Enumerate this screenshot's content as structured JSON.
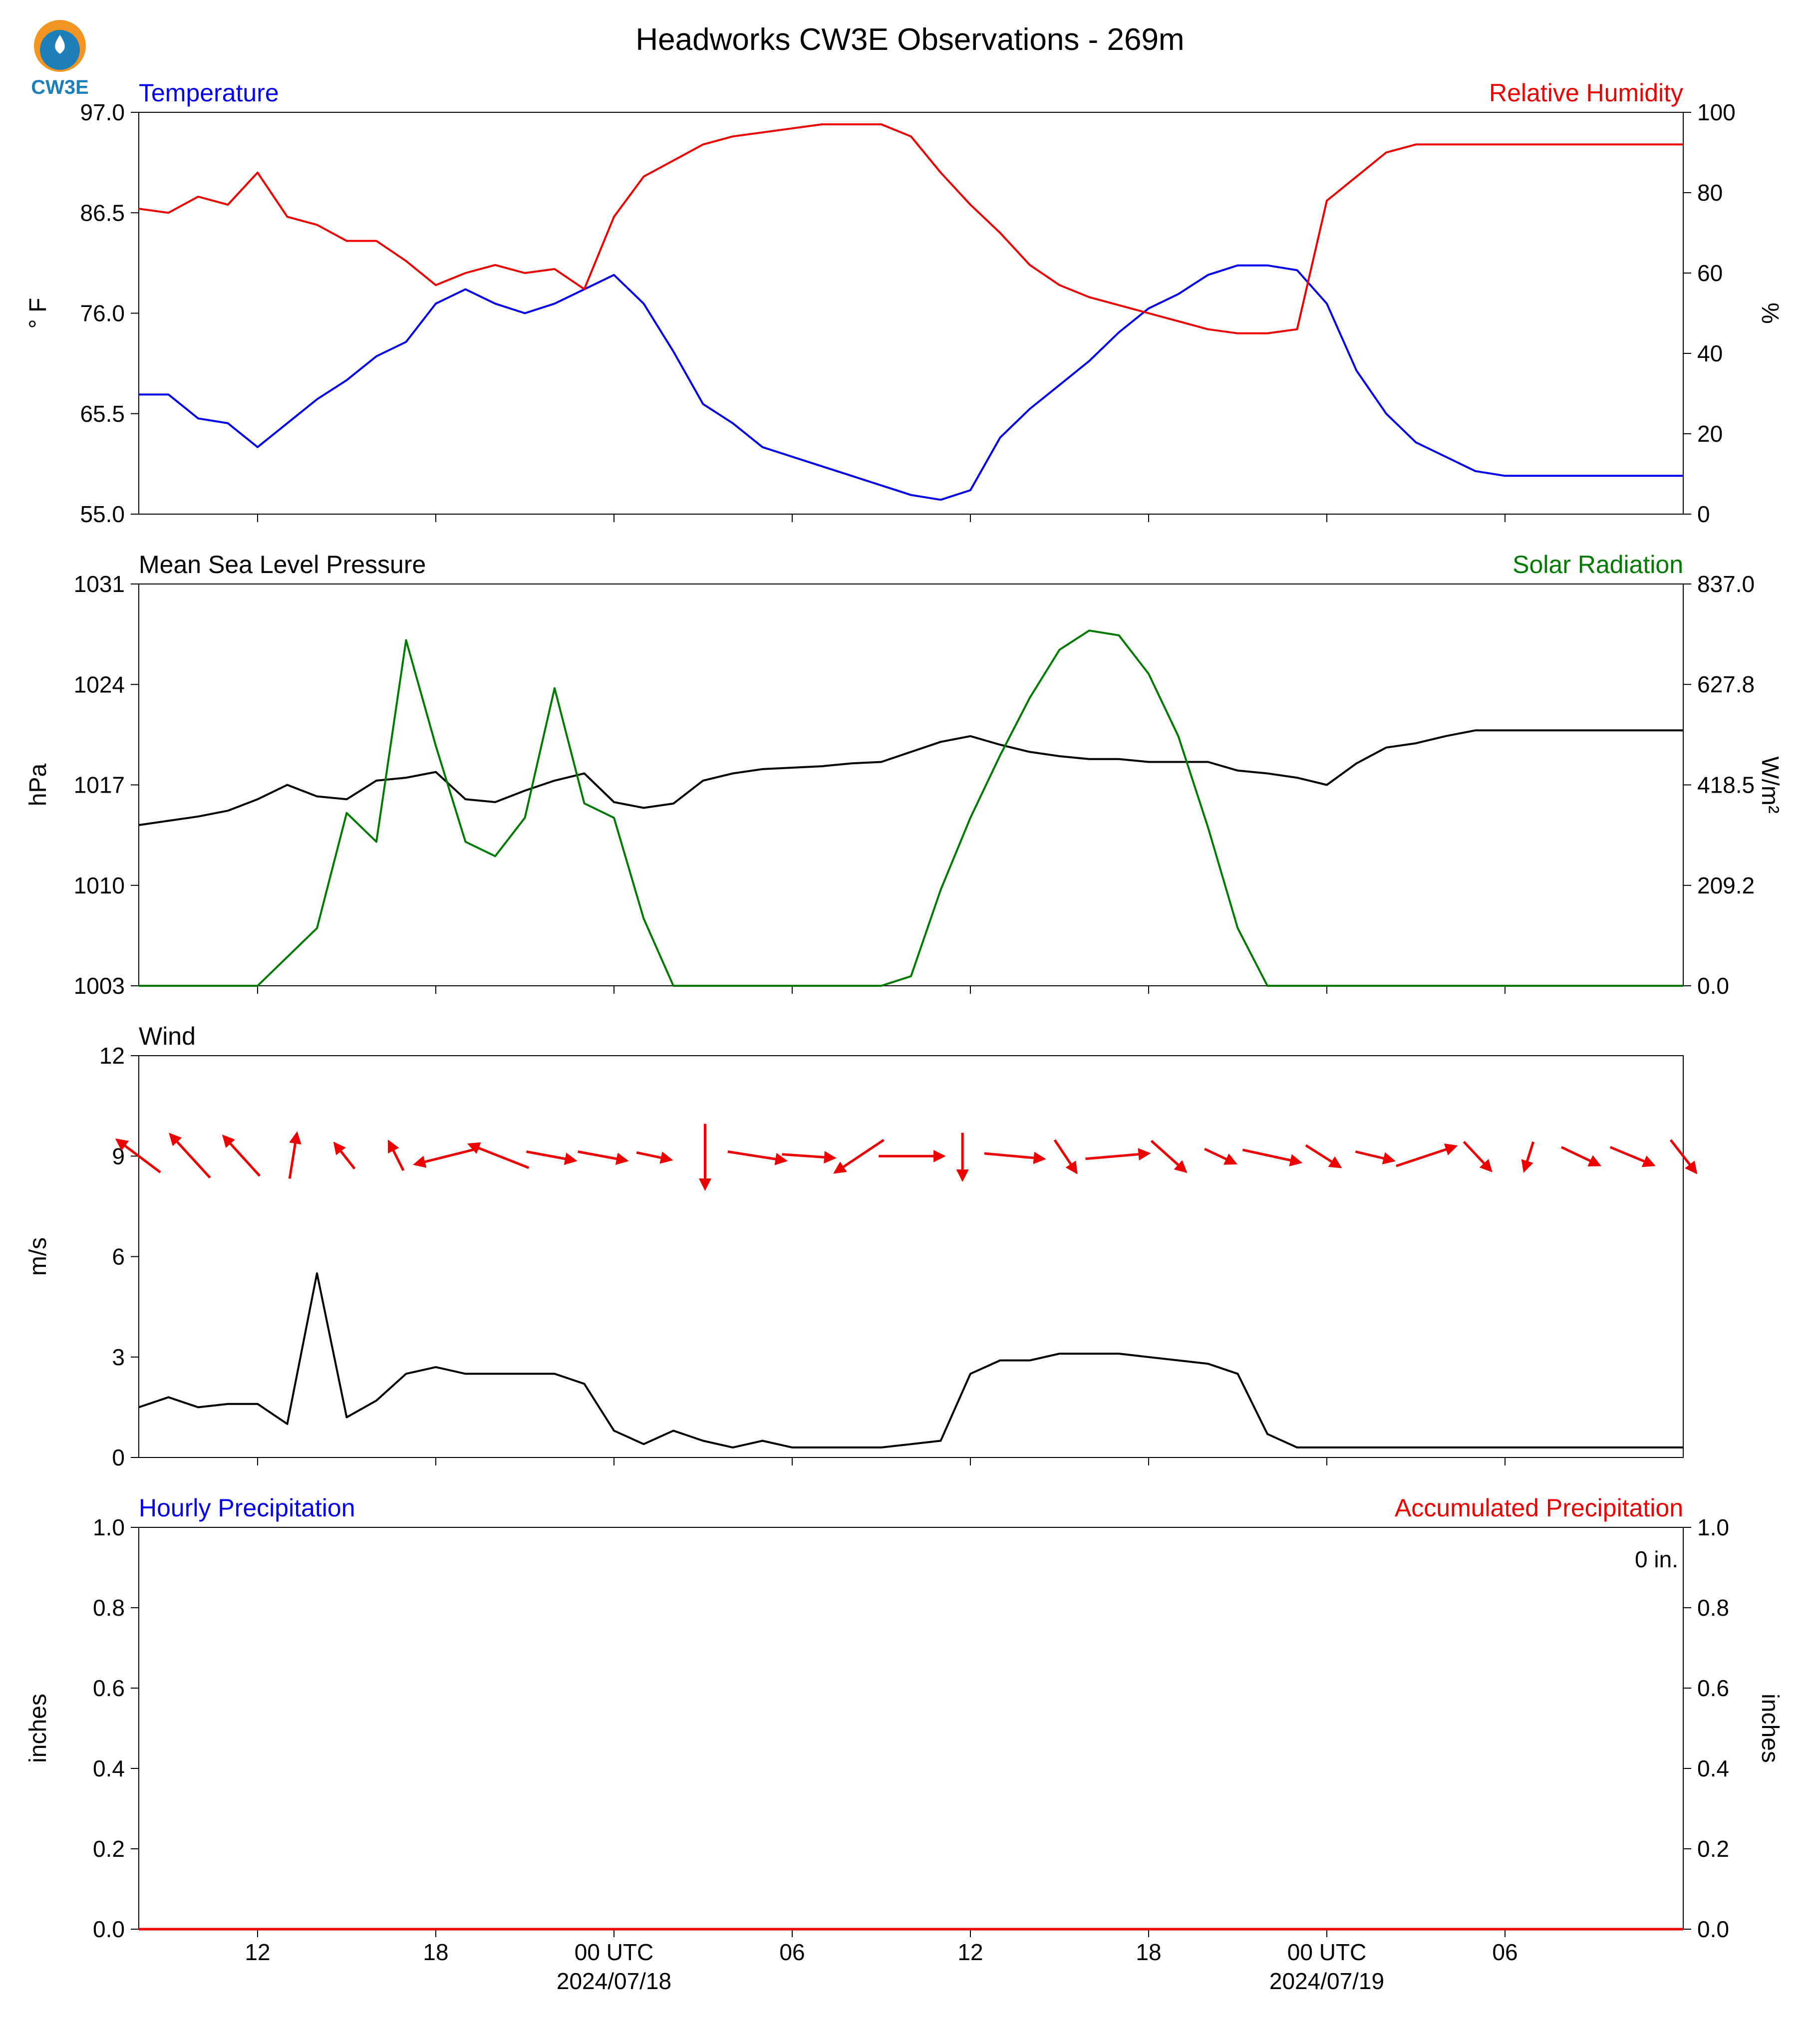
{
  "title": "Headworks CW3E Observations - 269m",
  "logo_text": "CW3E",
  "colors": {
    "temp": "#0000ee",
    "rh": "#ee0000",
    "pressure": "#000000",
    "solar": "#007a00",
    "wind": "#000000",
    "arrows": "#ee0000",
    "precip": "#ee0000"
  },
  "chart_data": [
    {
      "type": "line",
      "title_left": "Temperature",
      "title_right": "Relative Humidity",
      "ylabel_left": "° F",
      "ylabel_right": "%",
      "ylim_left": [
        55.0,
        97.0
      ],
      "yticks_left": [
        "55.0",
        "65.5",
        "76.0",
        "86.5",
        "97.0"
      ],
      "ylim_right": [
        0,
        100
      ],
      "yticks_right": [
        "0",
        "20",
        "40",
        "60",
        "80",
        "100"
      ],
      "x_hours": [
        -4,
        48
      ],
      "series": [
        {
          "name": "Temperature",
          "axis": "left",
          "x": [
            -4,
            -3,
            -2,
            -1,
            0,
            1,
            2,
            3,
            4,
            5,
            6,
            7,
            8,
            9,
            10,
            11,
            12,
            13,
            14,
            15,
            16,
            17,
            18,
            19,
            20,
            21,
            22,
            23,
            24,
            25,
            26,
            27,
            28,
            29,
            30,
            31,
            32,
            33,
            34,
            35,
            36,
            37,
            38,
            39,
            40,
            41,
            42,
            43,
            44,
            45,
            46,
            47,
            48
          ],
          "y": [
            67.5,
            67.5,
            65,
            64.5,
            62,
            64.5,
            67,
            69,
            71.5,
            73,
            77,
            78.5,
            77,
            76,
            77,
            78.5,
            80,
            77,
            72,
            66.5,
            64.5,
            62,
            61,
            60,
            59,
            58,
            57,
            56.5,
            57.5,
            63,
            66,
            68.5,
            71,
            74,
            76.5,
            78,
            80,
            81,
            81,
            80.5,
            77,
            70,
            65.5,
            62.5,
            61,
            59.5,
            59,
            59,
            59,
            59,
            59,
            59,
            59
          ]
        },
        {
          "name": "Relative Humidity",
          "axis": "right",
          "x": [
            -4,
            -3,
            -2,
            -1,
            0,
            1,
            2,
            3,
            4,
            5,
            6,
            7,
            8,
            9,
            10,
            11,
            12,
            13,
            14,
            15,
            16,
            17,
            18,
            19,
            20,
            21,
            22,
            23,
            24,
            25,
            26,
            27,
            28,
            29,
            30,
            31,
            32,
            33,
            34,
            35,
            36,
            37,
            38,
            39,
            40,
            41,
            42,
            43,
            44,
            45,
            46,
            47,
            48
          ],
          "y": [
            76,
            75,
            79,
            77,
            85,
            74,
            72,
            68,
            68,
            63,
            57,
            60,
            62,
            60,
            61,
            56,
            74,
            84,
            88,
            92,
            94,
            95,
            96,
            97,
            97,
            97,
            94,
            85,
            77,
            70,
            62,
            57,
            54,
            52,
            50,
            48,
            46,
            45,
            45,
            46,
            78,
            84,
            90,
            92,
            92,
            92,
            92,
            92,
            92,
            92,
            92,
            92,
            92
          ]
        }
      ]
    },
    {
      "type": "line",
      "title_left": "Mean Sea Level Pressure",
      "title_right": "Solar Radiation",
      "ylabel_left": "hPa",
      "ylabel_right": "W/m²",
      "ylim_left": [
        1003,
        1031
      ],
      "yticks_left": [
        "1003",
        "1010",
        "1017",
        "1024",
        "1031"
      ],
      "ylim_right": [
        0.0,
        837.0
      ],
      "yticks_right": [
        "0.0",
        "209.2",
        "418.5",
        "627.8",
        "837.0"
      ],
      "x_hours": [
        -4,
        48
      ],
      "series": [
        {
          "name": "Mean Sea Level Pressure",
          "axis": "left",
          "x": [
            -4,
            -3,
            -2,
            -1,
            0,
            1,
            2,
            3,
            4,
            5,
            6,
            7,
            8,
            9,
            10,
            11,
            12,
            13,
            14,
            15,
            16,
            17,
            18,
            19,
            20,
            21,
            22,
            23,
            24,
            25,
            26,
            27,
            28,
            29,
            30,
            31,
            32,
            33,
            34,
            35,
            36,
            37,
            38,
            39,
            40,
            41,
            42,
            43,
            44,
            45,
            46,
            47,
            48
          ],
          "y": [
            1014.2,
            1014.5,
            1014.8,
            1015.2,
            1016,
            1017,
            1016.2,
            1016,
            1017.3,
            1017.5,
            1017.9,
            1016,
            1015.8,
            1016.6,
            1017.3,
            1017.8,
            1015.8,
            1015.4,
            1015.7,
            1017.3,
            1017.8,
            1018.1,
            1018.2,
            1018.3,
            1018.5,
            1018.6,
            1019.3,
            1020.0,
            1020.4,
            1019.8,
            1019.3,
            1019.0,
            1018.8,
            1018.8,
            1018.6,
            1018.6,
            1018.6,
            1018.0,
            1017.8,
            1017.5,
            1017.0,
            1018.5,
            1019.6,
            1019.9,
            1020.4,
            1020.8,
            1020.8,
            1020.8,
            1020.8,
            1020.8,
            1020.8,
            1020.8,
            1020.8
          ]
        },
        {
          "name": "Solar Radiation",
          "axis": "right",
          "x": [
            -4,
            -3,
            -2,
            -1,
            0,
            1,
            2,
            3,
            4,
            5,
            6,
            7,
            8,
            9,
            10,
            11,
            12,
            13,
            14,
            15,
            16,
            17,
            18,
            19,
            20,
            21,
            22,
            23,
            24,
            25,
            26,
            27,
            28,
            29,
            30,
            31,
            32,
            33,
            34,
            35,
            36,
            37,
            38,
            39,
            40,
            41,
            42,
            43,
            44,
            45,
            46,
            47,
            48
          ],
          "y": [
            0,
            0,
            0,
            0,
            0,
            60,
            120,
            360,
            300,
            720,
            500,
            300,
            270,
            350,
            620,
            380,
            350,
            140,
            0,
            0,
            0,
            0,
            0,
            0,
            0,
            0,
            20,
            200,
            350,
            480,
            600,
            700,
            740,
            730,
            650,
            520,
            330,
            120,
            0,
            0,
            0,
            0,
            0,
            0,
            0,
            0,
            0,
            0,
            0,
            0,
            0,
            0,
            0
          ]
        }
      ]
    },
    {
      "type": "line",
      "title_left": "Wind",
      "ylabel_left": "m/s",
      "ylim_left": [
        0,
        12
      ],
      "yticks_left": [
        "0",
        "3",
        "6",
        "9",
        "12"
      ],
      "x_hours": [
        -4,
        48
      ],
      "series": [
        {
          "name": "Wind",
          "axis": "left",
          "x": [
            -4,
            -3,
            -2,
            -1,
            0,
            1,
            2,
            3,
            4,
            5,
            6,
            7,
            8,
            9,
            10,
            11,
            12,
            13,
            14,
            15,
            16,
            17,
            18,
            19,
            20,
            21,
            22,
            23,
            24,
            25,
            26,
            27,
            28,
            29,
            30,
            31,
            32,
            33,
            34,
            35,
            36,
            37,
            38,
            39,
            40,
            41,
            42,
            43,
            44,
            45,
            46,
            47,
            48
          ],
          "y": [
            1.5,
            1.8,
            1.5,
            1.6,
            1.6,
            1.0,
            5.5,
            1.2,
            1.7,
            2.5,
            2.7,
            2.5,
            2.5,
            2.5,
            2.5,
            2.2,
            0.8,
            0.4,
            0.8,
            0.5,
            0.3,
            0.5,
            0.3,
            0.3,
            0.3,
            0.3,
            0.4,
            0.5,
            2.5,
            2.9,
            2.9,
            3.1,
            3.1,
            3.1,
            3.0,
            2.9,
            2.8,
            2.5,
            0.7,
            0.3,
            0.3,
            0.3,
            0.3,
            0.3,
            0.3,
            0.3,
            0.3,
            0.3,
            0.3,
            0.3,
            0.3,
            0.3,
            0.3
          ]
        }
      ],
      "wind_arrows_u_v": [
        [
          -2.4,
          1.8
        ],
        [
          -2.2,
          2.4
        ],
        [
          -2.0,
          2.2
        ],
        [
          0.4,
          2.5
        ],
        [
          -1.1,
          1.4
        ],
        [
          -0.8,
          1.6
        ],
        [
          -3.6,
          -0.9
        ],
        [
          -3.3,
          1.3
        ],
        [
          2.7,
          -0.5
        ],
        [
          2.7,
          -0.5
        ],
        [
          1.9,
          -0.4
        ],
        [
          0.0,
          -3.6
        ],
        [
          3.2,
          -0.5
        ],
        [
          2.9,
          -0.2
        ],
        [
          -2.7,
          -1.8
        ],
        [
          3.6,
          0.0
        ],
        [
          0.0,
          -2.6
        ],
        [
          3.3,
          -0.3
        ],
        [
          1.2,
          -1.8
        ],
        [
          3.5,
          0.3
        ],
        [
          1.9,
          -1.7
        ],
        [
          1.7,
          -0.8
        ],
        [
          3.2,
          -0.7
        ],
        [
          1.9,
          -1.2
        ],
        [
          2.1,
          -0.5
        ],
        [
          3.3,
          1.1
        ],
        [
          1.5,
          -1.6
        ],
        [
          -0.5,
          -1.6
        ],
        [
          2.1,
          -1.0
        ],
        [
          2.4,
          -1.0
        ],
        [
          1.4,
          -1.8
        ]
      ]
    },
    {
      "type": "line",
      "title_left": "Hourly Precipitation",
      "title_right": "Accumulated Precipitation",
      "ylabel_left": "inches",
      "ylabel_right": "inches",
      "ylim_left": [
        0.0,
        1.0
      ],
      "yticks_left": [
        "0.0",
        "0.2",
        "0.4",
        "0.6",
        "0.8",
        "1.0"
      ],
      "ylim_right": [
        0.0,
        1.0
      ],
      "yticks_right": [
        "0.0",
        "0.2",
        "0.4",
        "0.6",
        "0.8",
        "1.0"
      ],
      "annotation": "0 in.",
      "x_hours": [
        -4,
        48
      ],
      "series": [
        {
          "name": "Accumulated Precipitation",
          "axis": "right",
          "x": [
            -4,
            48
          ],
          "y": [
            0,
            0
          ]
        }
      ]
    }
  ],
  "x_ticks": [
    {
      "hour": 0,
      "label": "12"
    },
    {
      "hour": 6,
      "label": "18"
    },
    {
      "hour": 12,
      "label": "00 UTC",
      "sublabel": "2024/07/18"
    },
    {
      "hour": 18,
      "label": "06"
    },
    {
      "hour": 24,
      "label": "12"
    },
    {
      "hour": 30,
      "label": "18"
    },
    {
      "hour": 36,
      "label": "00 UTC",
      "sublabel": "2024/07/19"
    },
    {
      "hour": 42,
      "label": "06"
    }
  ]
}
